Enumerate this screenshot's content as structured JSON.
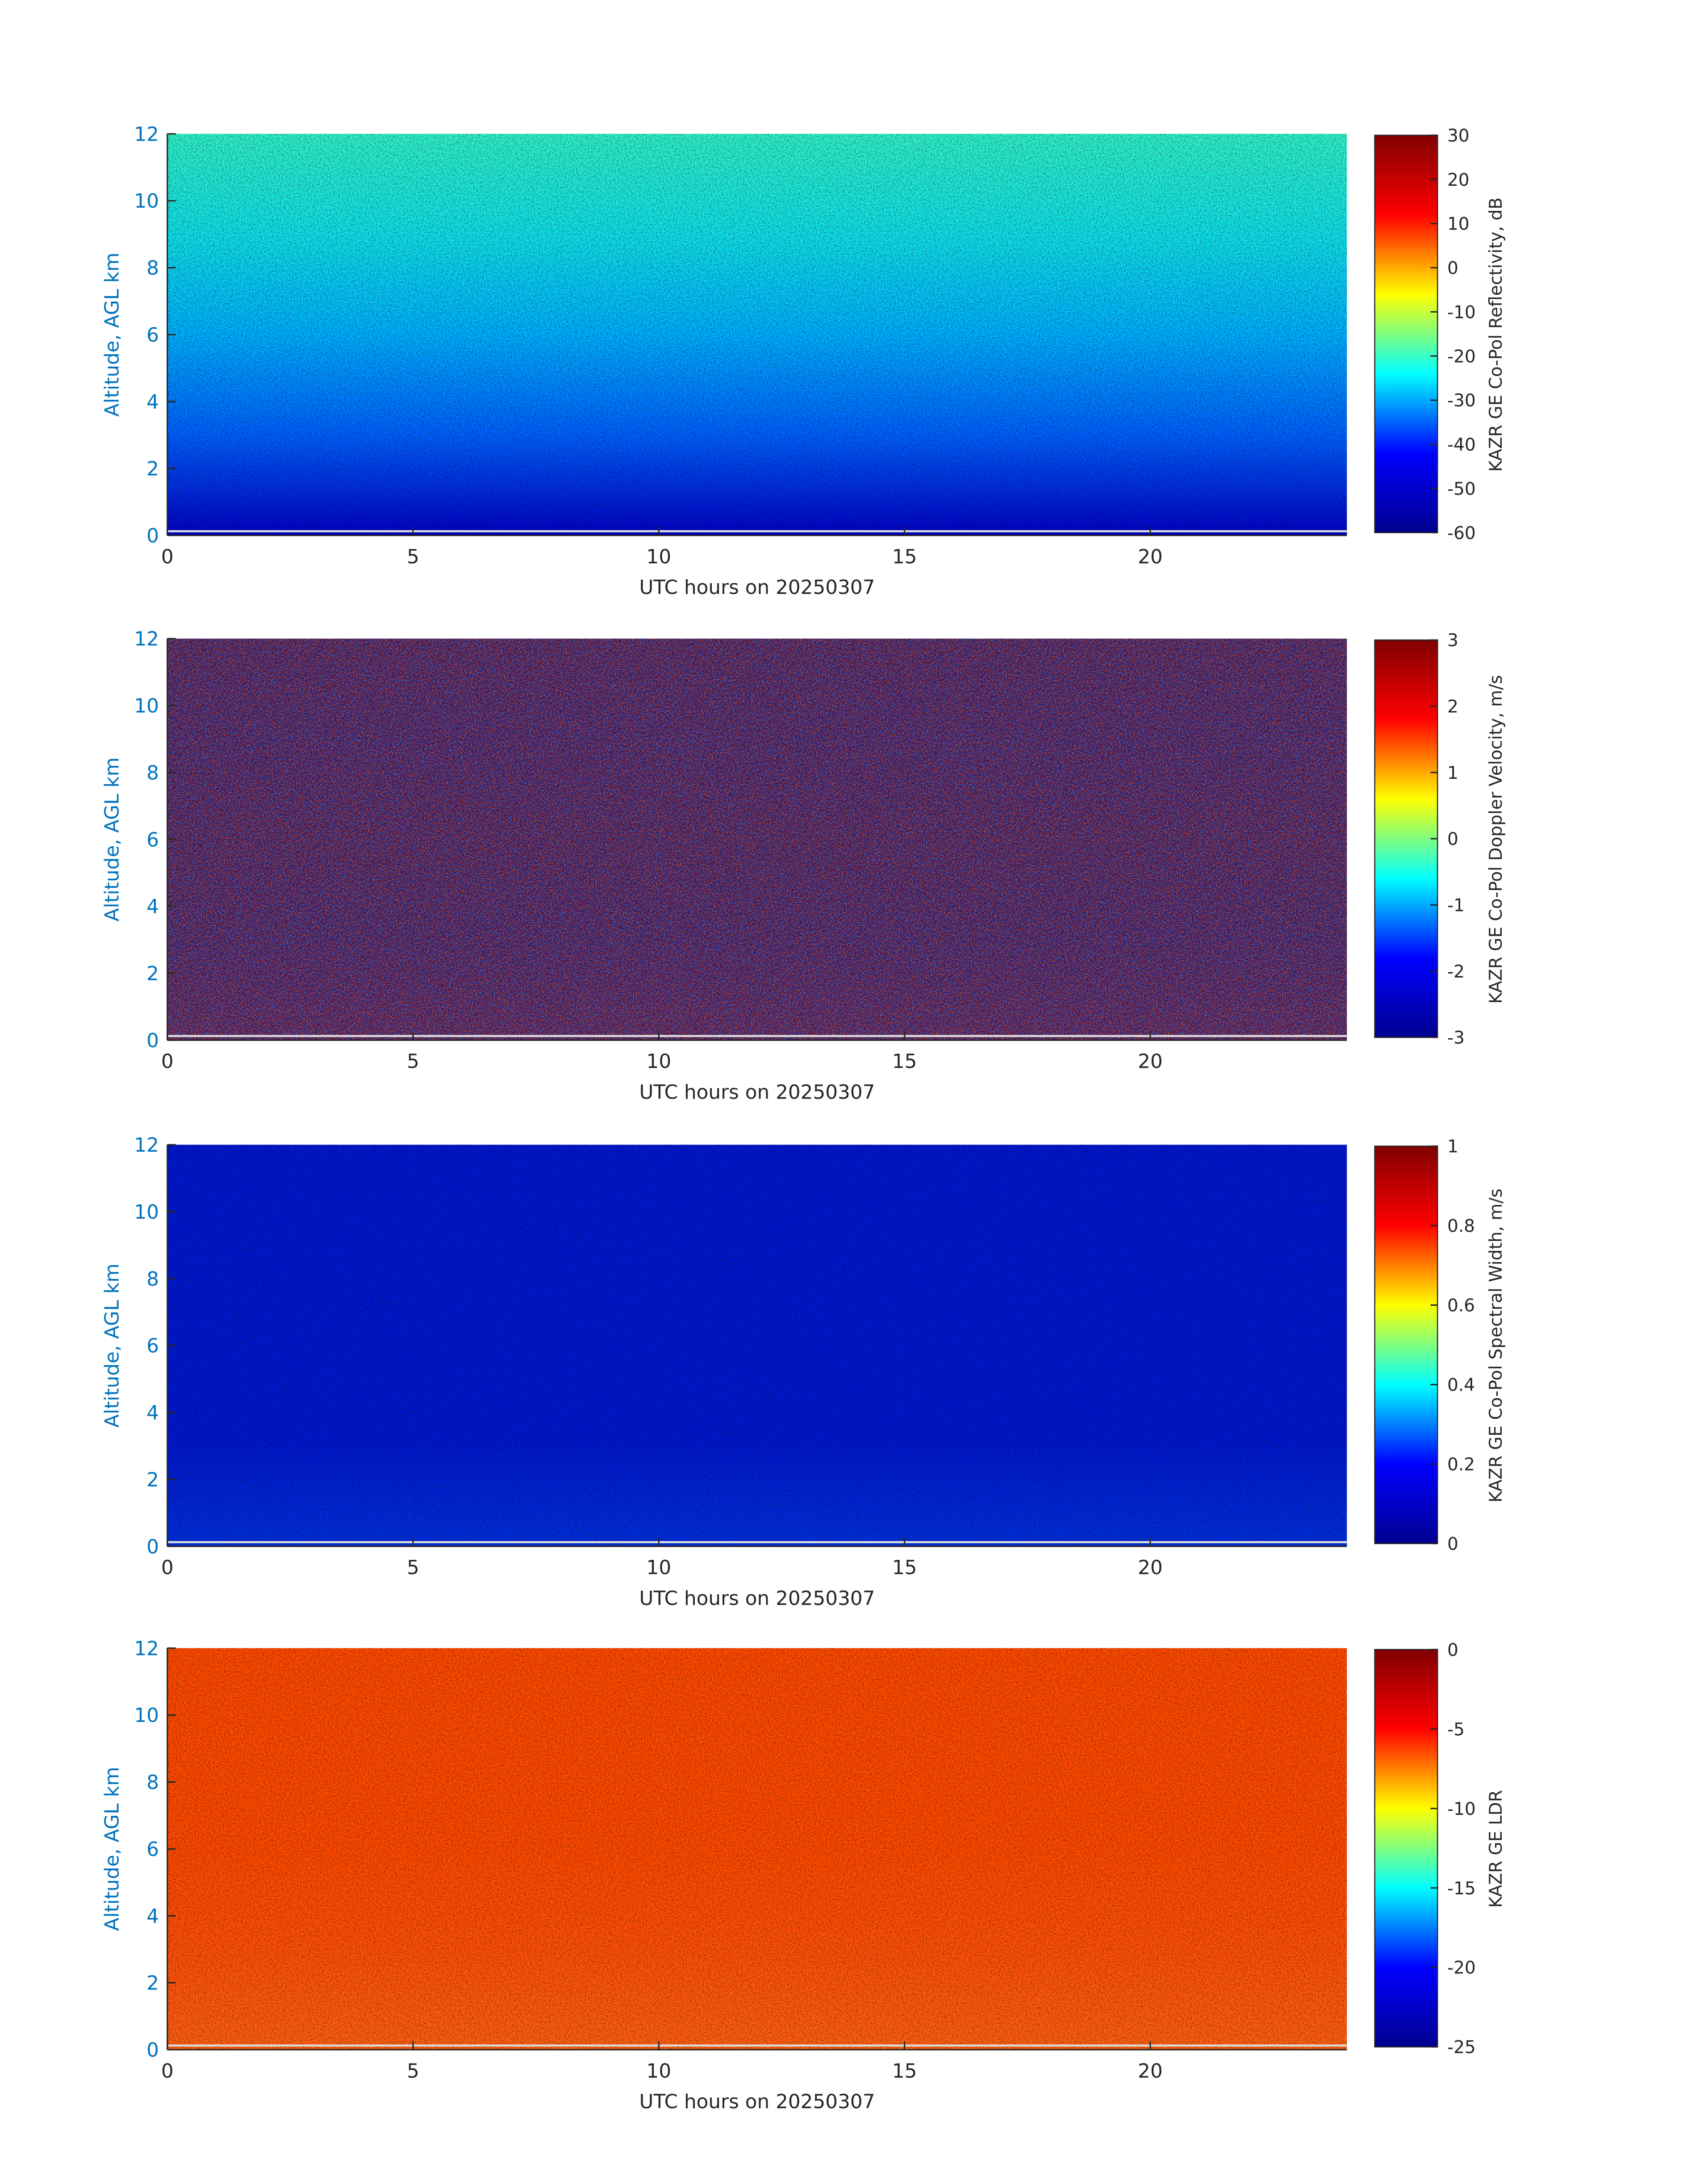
{
  "chart_data": [
    {
      "type": "heatmap",
      "xlabel": "UTC hours on 20250307",
      "ylabel": "Altitude, AGL km",
      "xlim": [
        0,
        24
      ],
      "xticks": [
        0,
        5,
        10,
        15,
        20
      ],
      "ylim": [
        0,
        12
      ],
      "yticks": [
        0,
        2,
        4,
        6,
        8,
        10,
        12
      ],
      "colorbar_label": "KAZR GE Co-Pol Reflectivity, dB",
      "clim": [
        -60,
        30
      ],
      "cticks": [
        -60,
        -50,
        -40,
        -30,
        -20,
        -10,
        0,
        10,
        20,
        30
      ],
      "colormap": [
        "#00008f",
        "#0000ff",
        "#00ffff",
        "#ffff00",
        "#ff0000",
        "#800000"
      ],
      "field_colors": [
        "#0000c8",
        "#0060ff",
        "#00b0ff",
        "#10e0e8",
        "#30f0c8"
      ]
    },
    {
      "type": "heatmap",
      "xlabel": "UTC hours on 20250307",
      "ylabel": "Altitude, AGL km",
      "xlim": [
        0,
        24
      ],
      "xticks": [
        0,
        5,
        10,
        15,
        20
      ],
      "ylim": [
        0,
        12
      ],
      "yticks": [
        0,
        2,
        4,
        6,
        8,
        10,
        12
      ],
      "colorbar_label": "KAZR GE Co-Pol Doppler Velocity, m/s",
      "clim": [
        -3,
        3
      ],
      "cticks": [
        -3,
        -2,
        -1,
        0,
        1,
        2,
        3
      ],
      "colormap": [
        "#00008f",
        "#0000ff",
        "#00ffff",
        "#ffff00",
        "#ff0000",
        "#800000"
      ],
      "field_colors": [
        "#5a1a5a",
        "#4a1860",
        "#501858",
        "#4a1860",
        "#501858"
      ]
    },
    {
      "type": "heatmap",
      "xlabel": "UTC hours on 20250307",
      "ylabel": "Altitude, AGL km",
      "xlim": [
        0,
        24
      ],
      "xticks": [
        0,
        5,
        10,
        15,
        20
      ],
      "ylim": [
        0,
        12
      ],
      "yticks": [
        0,
        2,
        4,
        6,
        8,
        10,
        12
      ],
      "colorbar_label": "KAZR GE Co-Pol Spectral Width, m/s",
      "clim": [
        0,
        1
      ],
      "cticks": [
        0,
        0.2,
        0.4,
        0.6,
        0.8,
        1
      ],
      "colormap": [
        "#00008f",
        "#0000ff",
        "#00ffff",
        "#ffff00",
        "#ff0000",
        "#800000"
      ],
      "field_colors": [
        "#0030e0",
        "#0018d0",
        "#0018d0",
        "#0018d0",
        "#0018d0"
      ]
    },
    {
      "type": "heatmap",
      "xlabel": "UTC hours on 20250307",
      "ylabel": "Altitude, AGL km",
      "xlim": [
        0,
        24
      ],
      "xticks": [
        0,
        5,
        10,
        15,
        20
      ],
      "ylim": [
        0,
        12
      ],
      "yticks": [
        0,
        2,
        4,
        6,
        8,
        10,
        12
      ],
      "colorbar_label": "KAZR GE LDR",
      "clim": [
        -25,
        0
      ],
      "cticks": [
        -25,
        -20,
        -15,
        -10,
        -5,
        0
      ],
      "colormap": [
        "#00008f",
        "#0000ff",
        "#00ffff",
        "#ffff00",
        "#ff0000",
        "#800000"
      ],
      "field_colors": [
        "#ff6010",
        "#ff5008",
        "#ff4a00",
        "#ff4a00",
        "#ff4a00"
      ]
    }
  ]
}
